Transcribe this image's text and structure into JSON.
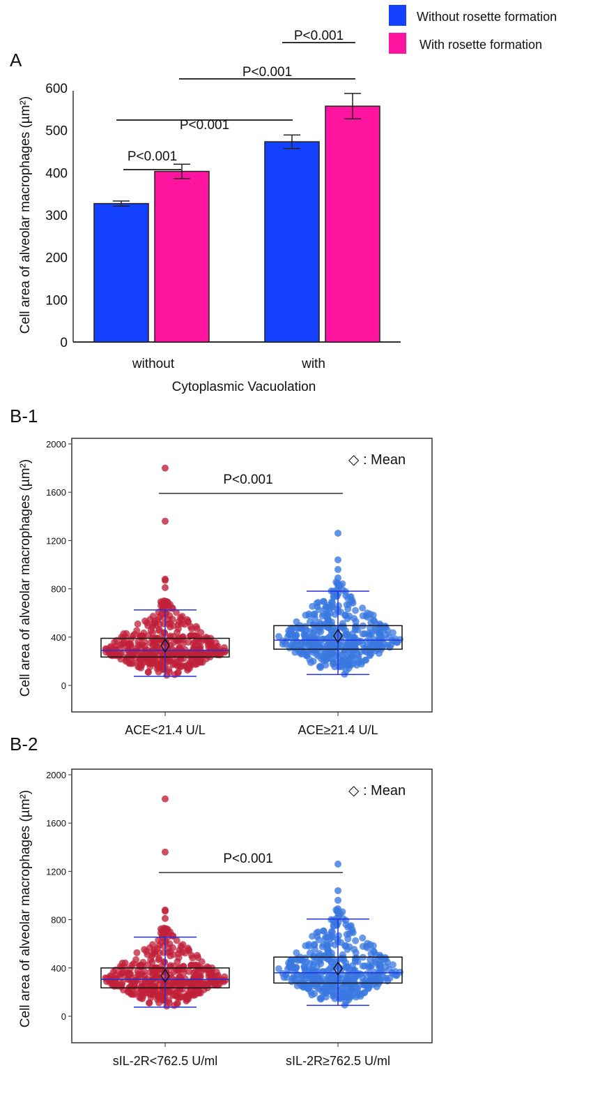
{
  "chart_data": [
    {
      "panel": "A",
      "type": "bar",
      "ylabel": "Cell area of alveolar macrophages (µm²)",
      "xlabel": "Cytoplasmic Vacuolation",
      "categories": [
        "without",
        "with"
      ],
      "ylim": [
        0,
        600
      ],
      "yticks": [
        0,
        100,
        200,
        300,
        400,
        500,
        600
      ],
      "legend": {
        "placement": "top-right",
        "entries": [
          {
            "name": "Without rosette formation",
            "color": "#1440ff"
          },
          {
            "name": "With rosette formation",
            "color": "#ff14a0"
          }
        ]
      },
      "series": [
        {
          "name": "Without rosette formation",
          "color": "#1440ff",
          "values": [
            327,
            473
          ],
          "errors": [
            6,
            16
          ]
        },
        {
          "name": "With rosette formation",
          "color": "#ff14a0",
          "values": [
            403,
            557
          ],
          "errors": [
            17,
            30
          ]
        }
      ],
      "annotations": [
        {
          "text": "P<0.001",
          "between": [
            "without/Without",
            "without/With"
          ]
        },
        {
          "text": "P<0.001",
          "between": [
            "without/Without",
            "with/Without"
          ]
        },
        {
          "text": "P<0.001",
          "between": [
            "with/Without",
            "with/With"
          ]
        },
        {
          "text": "P<0.001",
          "between": [
            "without/With",
            "with/With"
          ]
        }
      ]
    },
    {
      "panel": "B-1",
      "type": "scatter",
      "ylabel": "Cell area of alveolar macrophages (µm²)",
      "ylim": [
        -200,
        2000
      ],
      "yticks": [
        0,
        400,
        800,
        1200,
        1600,
        2000
      ],
      "legend_text": "◇ : Mean",
      "p_text": "P<0.001",
      "groups": [
        {
          "label": "ACE<21.4 U/L",
          "color": "#c0203a",
          "q1": 235,
          "median": 290,
          "q3": 390,
          "mean": 330,
          "wlo": 75,
          "whi": 625,
          "n": 420,
          "outliers": [
            1360,
            1800,
            880,
            870,
            810
          ]
        },
        {
          "label": "ACE≥21.4 U/L",
          "color": "#3a78e0",
          "q1": 300,
          "median": 375,
          "q3": 495,
          "mean": 410,
          "wlo": 90,
          "whi": 780,
          "n": 420,
          "outliers": [
            1260,
            1040,
            960,
            890
          ]
        }
      ]
    },
    {
      "panel": "B-2",
      "type": "scatter",
      "ylabel": "Cell area of alveolar macrophages (µm²)",
      "ylim": [
        -200,
        2000
      ],
      "yticks": [
        0,
        400,
        800,
        1200,
        1600,
        2000
      ],
      "legend_text": "◇ : Mean",
      "p_text": "P<0.001",
      "groups": [
        {
          "label": "sIL-2R<762.5 U/ml",
          "color": "#c0203a",
          "q1": 235,
          "median": 305,
          "q3": 400,
          "mean": 335,
          "wlo": 75,
          "whi": 655,
          "n": 420,
          "outliers": [
            1360,
            1800,
            880,
            870,
            810
          ]
        },
        {
          "label": "sIL-2R≥762.5 U/ml",
          "color": "#3a78e0",
          "q1": 275,
          "median": 360,
          "q3": 490,
          "mean": 395,
          "wlo": 90,
          "whi": 805,
          "n": 420,
          "outliers": [
            1260,
            1040,
            960,
            890
          ]
        }
      ]
    }
  ],
  "labels": {
    "A": "A",
    "B1": "B-1",
    "B2": "B-2"
  }
}
